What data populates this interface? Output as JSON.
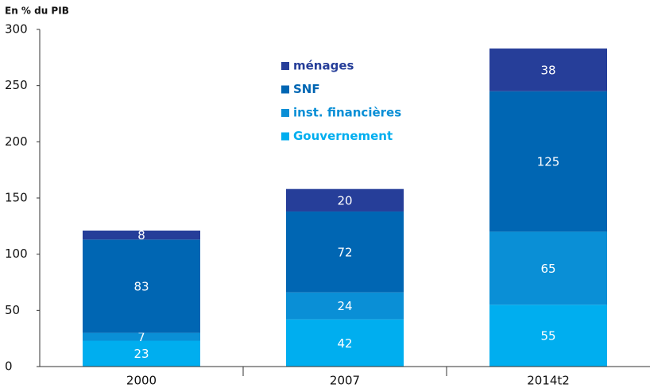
{
  "chart_data": {
    "type": "stacked-bar",
    "y_axis_label": "En % du PIB",
    "categories": [
      "2000",
      "2007",
      "2014t2"
    ],
    "series": [
      {
        "name": "Gouvernement",
        "color": "#00aeef",
        "values": [
          23,
          42,
          55
        ]
      },
      {
        "name": "inst. financières",
        "color": "#0a8fd6",
        "values": [
          7,
          24,
          65
        ]
      },
      {
        "name": "SNF",
        "color": "#0066b3",
        "values": [
          83,
          72,
          125
        ]
      },
      {
        "name": "ménages",
        "color": "#263e99",
        "values": [
          8,
          20,
          38
        ]
      }
    ],
    "ylim": [
      0,
      300
    ],
    "yticks": [
      0,
      50,
      100,
      150,
      200,
      250,
      300
    ],
    "grid": false,
    "legend": "top-center"
  }
}
